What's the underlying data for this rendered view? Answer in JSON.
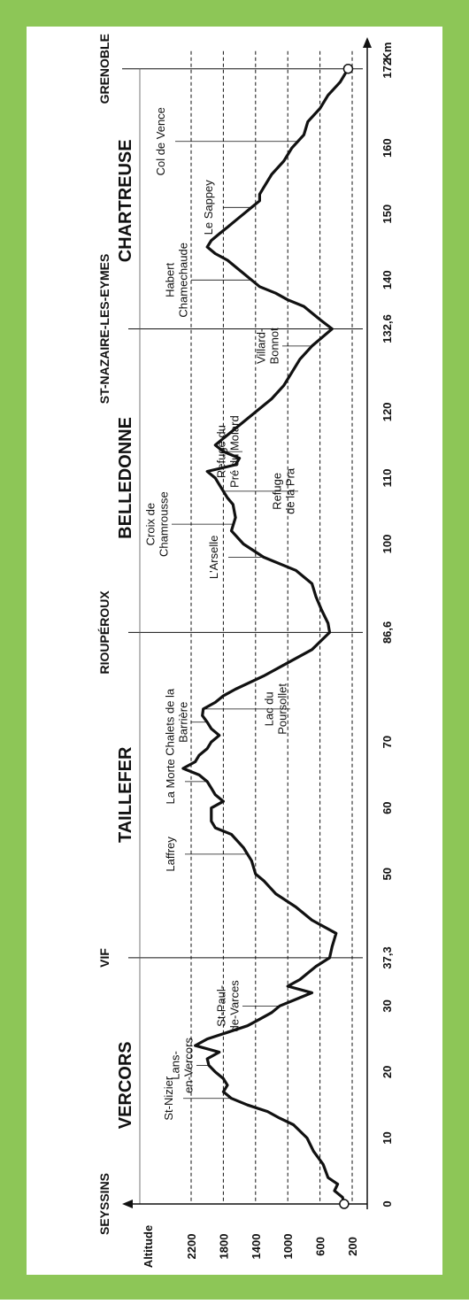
{
  "chart_data": {
    "type": "line",
    "title": "",
    "xlabel": "Km",
    "ylabel": "Altitude",
    "xlim": [
      0,
      172
    ],
    "ylim": [
      0,
      2500
    ],
    "x_ticks": [
      "0",
      "10",
      "20",
      "30",
      "37,3",
      "50",
      "60",
      "70",
      "86,6",
      "100",
      "110",
      "120",
      "132,6",
      "140",
      "150",
      "160",
      "172"
    ],
    "x_tick_values": [
      0,
      10,
      20,
      30,
      37.3,
      50,
      60,
      70,
      86.6,
      100,
      110,
      120,
      132.6,
      140,
      150,
      160,
      172
    ],
    "y_ticks": [
      200,
      600,
      1000,
      1400,
      1800,
      2200
    ],
    "grid": "dashed horizontal",
    "series": [
      {
        "values": [
          [
            0,
            300
          ],
          [
            1,
            320
          ],
          [
            2,
            420
          ],
          [
            3,
            380
          ],
          [
            4,
            500
          ],
          [
            6,
            560
          ],
          [
            8,
            680
          ],
          [
            10,
            760
          ],
          [
            12,
            930
          ],
          [
            13,
            1100
          ],
          [
            14,
            1250
          ],
          [
            15,
            1500
          ],
          [
            16,
            1700
          ],
          [
            17,
            1800
          ],
          [
            18,
            1750
          ],
          [
            19,
            1800
          ],
          [
            20,
            1900
          ],
          [
            21,
            1980
          ],
          [
            22,
            2000
          ],
          [
            23,
            1850
          ],
          [
            24,
            2150
          ],
          [
            25,
            2000
          ],
          [
            26,
            1750
          ],
          [
            27,
            1500
          ],
          [
            28,
            1350
          ],
          [
            29,
            1200
          ],
          [
            30,
            1100
          ],
          [
            31,
            900
          ],
          [
            32,
            700
          ],
          [
            33,
            1000
          ],
          [
            34,
            850
          ],
          [
            35,
            750
          ],
          [
            36,
            650
          ],
          [
            37.3,
            480
          ],
          [
            39,
            450
          ],
          [
            41,
            400
          ],
          [
            43,
            700
          ],
          [
            45,
            900
          ],
          [
            47,
            1150
          ],
          [
            49,
            1300
          ],
          [
            50,
            1400
          ],
          [
            52,
            1450
          ],
          [
            54,
            1550
          ],
          [
            56,
            1700
          ],
          [
            57,
            1900
          ],
          [
            58,
            1950
          ],
          [
            60,
            1950
          ],
          [
            61,
            1800
          ],
          [
            62,
            1900
          ],
          [
            63,
            1950
          ],
          [
            64,
            2000
          ],
          [
            65,
            2100
          ],
          [
            66,
            2300
          ],
          [
            67,
            2150
          ],
          [
            68,
            2100
          ],
          [
            69,
            2000
          ],
          [
            70,
            1950
          ],
          [
            71,
            1850
          ],
          [
            72,
            1950
          ],
          [
            73,
            2000
          ],
          [
            74,
            2060
          ],
          [
            75,
            2050
          ],
          [
            76,
            1900
          ],
          [
            77,
            1800
          ],
          [
            78,
            1650
          ],
          [
            80,
            1300
          ],
          [
            82,
            1000
          ],
          [
            84,
            700
          ],
          [
            86.6,
            480
          ],
          [
            88,
            500
          ],
          [
            90,
            580
          ],
          [
            92,
            650
          ],
          [
            94,
            700
          ],
          [
            96,
            900
          ],
          [
            98,
            1300
          ],
          [
            100,
            1550
          ],
          [
            102,
            1700
          ],
          [
            104,
            1650
          ],
          [
            106,
            1680
          ],
          [
            107,
            1750
          ],
          [
            108,
            1800
          ],
          [
            109,
            1850
          ],
          [
            110,
            1900
          ],
          [
            111,
            2000
          ],
          [
            112,
            1650
          ],
          [
            113,
            1600
          ],
          [
            114,
            1800
          ],
          [
            115,
            1900
          ],
          [
            116,
            1800
          ],
          [
            118,
            1600
          ],
          [
            120,
            1400
          ],
          [
            122,
            1200
          ],
          [
            124,
            1050
          ],
          [
            126,
            950
          ],
          [
            128,
            850
          ],
          [
            130,
            700
          ],
          [
            132.6,
            450
          ],
          [
            134,
            600
          ],
          [
            136,
            800
          ],
          [
            137,
            1000
          ],
          [
            138,
            1150
          ],
          [
            139,
            1350
          ],
          [
            140,
            1450
          ],
          [
            141,
            1550
          ],
          [
            142,
            1650
          ],
          [
            143,
            1750
          ],
          [
            144,
            1900
          ],
          [
            145,
            2000
          ],
          [
            146,
            1950
          ],
          [
            147,
            1850
          ],
          [
            148,
            1750
          ],
          [
            149,
            1650
          ],
          [
            150,
            1550
          ],
          [
            151,
            1450
          ],
          [
            152,
            1350
          ],
          [
            153,
            1350
          ],
          [
            154,
            1300
          ],
          [
            156,
            1200
          ],
          [
            158,
            1050
          ],
          [
            160,
            950
          ],
          [
            162,
            800
          ],
          [
            164,
            750
          ],
          [
            166,
            600
          ],
          [
            168,
            500
          ],
          [
            170,
            350
          ],
          [
            172,
            250
          ]
        ]
      }
    ],
    "sections": [
      {
        "name": "VERCORS",
        "x": 18
      },
      {
        "name": "TAILLEFER",
        "x": 62
      },
      {
        "name": "BELLEDONNE",
        "x": 110
      },
      {
        "name": "CHARTREUSE",
        "x": 152
      }
    ],
    "waypoints": [
      {
        "name": "SEYSSINS",
        "x": 0
      },
      {
        "name": "VIF",
        "x": 37.3
      },
      {
        "name": "RIOUPÉROUX",
        "x": 86.6
      },
      {
        "name": "ST-NAZAIRE-LES-EYMES",
        "x": 132.6
      },
      {
        "name": "GRENOBLE",
        "x": 172
      }
    ],
    "annotations": [
      {
        "text": "St-Nizier",
        "x": 16
      },
      {
        "text": "Lans-\nen-Vercors",
        "x": 21
      },
      {
        "text": "St-Paul-\nde-Varces",
        "x": 30
      },
      {
        "text": "Laffrey",
        "x": 53
      },
      {
        "text": "La Morte",
        "x": 64
      },
      {
        "text": "Chalets de la\nBarrière",
        "x": 73
      },
      {
        "text": "Lac du\nPoursollet",
        "x": 75
      },
      {
        "text": "L'Arselle",
        "x": 98
      },
      {
        "text": "Croix de\nChamrousse",
        "x": 103
      },
      {
        "text": "Refuge\nde la Pra",
        "x": 108
      },
      {
        "text": "Refuge du\nPré du Molard",
        "x": 114
      },
      {
        "text": "Villard-\nBonnot",
        "x": 130
      },
      {
        "text": "Habert\nChamechaude",
        "x": 140
      },
      {
        "text": "Le Sappey",
        "x": 151
      },
      {
        "text": "Col de Vence",
        "x": 161
      }
    ],
    "legend": "none",
    "colors": {
      "frame": "#8dc657",
      "panel": "#ffffff",
      "line": "#111111"
    }
  }
}
